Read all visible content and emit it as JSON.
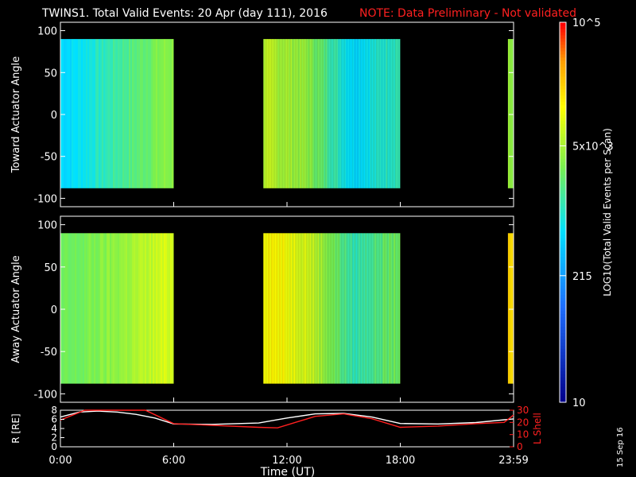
{
  "header": {
    "title": "TWINS1. Total Valid Events: 20 Apr (day 111), 2016",
    "note": "NOTE: Data Preliminary - Not validated"
  },
  "footer": {
    "xlabel": "Time (UT)",
    "stamp": "15 Sep 16"
  },
  "colorbar": {
    "label": "LOG10(Total Valid Events per Scan)",
    "ticks": [
      {
        "value": 10,
        "label": "10"
      },
      {
        "value": 215,
        "label": "215"
      },
      {
        "value": 5000,
        "label": "5x10^3"
      },
      {
        "value": 100000,
        "label": "10^5"
      }
    ],
    "range": [
      10,
      100000
    ],
    "scale": "log"
  },
  "chart_data": [
    {
      "type": "heatmap",
      "panel": "top",
      "ylabel": "Toward Actuator Angle",
      "x_ticks": [
        "0:00",
        "6:00",
        "12:00",
        "18:00",
        "23:59"
      ],
      "xlim": [
        0,
        24
      ],
      "ylim": [
        -110,
        110
      ],
      "y_ticks": [
        -100,
        -50,
        0,
        50,
        100
      ],
      "angle_range": [
        -88,
        90
      ],
      "data_segments_hours": [
        [
          0.0,
          6.0
        ],
        [
          10.75,
          18.0
        ],
        [
          23.7,
          24.0
        ]
      ],
      "typical_level_events": [
        {
          "hour": 0.5,
          "value": 600
        },
        {
          "hour": 3.0,
          "value": 1500
        },
        {
          "hour": 5.5,
          "value": 3500
        },
        {
          "hour": 11.0,
          "value": 6000
        },
        {
          "hour": 13.0,
          "value": 4000
        },
        {
          "hour": 15.5,
          "value": 600
        },
        {
          "hour": 17.5,
          "value": 1200
        },
        {
          "hour": 23.9,
          "value": 4000
        }
      ]
    },
    {
      "type": "heatmap",
      "panel": "middle",
      "ylabel": "Away Actuator Angle",
      "x_ticks": [
        "0:00",
        "6:00",
        "12:00",
        "18:00",
        "23:59"
      ],
      "xlim": [
        0,
        24
      ],
      "ylim": [
        -110,
        110
      ],
      "y_ticks": [
        -100,
        -50,
        0,
        50,
        100
      ],
      "angle_range": [
        -88,
        90
      ],
      "data_segments_hours": [
        [
          0.0,
          6.0
        ],
        [
          10.75,
          18.0
        ],
        [
          23.7,
          24.0
        ]
      ],
      "typical_level_events": [
        {
          "hour": 0.5,
          "value": 2500
        },
        {
          "hour": 3.0,
          "value": 4000
        },
        {
          "hour": 5.5,
          "value": 8000
        },
        {
          "hour": 11.0,
          "value": 15000
        },
        {
          "hour": 13.0,
          "value": 9000
        },
        {
          "hour": 15.5,
          "value": 1200
        },
        {
          "hour": 17.5,
          "value": 2500
        },
        {
          "hour": 23.9,
          "value": 20000
        }
      ]
    },
    {
      "type": "line",
      "panel": "bottom",
      "ylabel_left": "R [RE]",
      "ylabel_right": "L Shell",
      "x_ticks": [
        "0:00",
        "6:00",
        "12:00",
        "18:00",
        "23:59"
      ],
      "xlim": [
        0,
        24
      ],
      "ylim_left": [
        0,
        8
      ],
      "y_ticks_left": [
        0,
        2,
        4,
        6,
        8
      ],
      "ylim_right": [
        0,
        30
      ],
      "y_ticks_right": [
        0,
        10,
        20,
        30
      ],
      "series": [
        {
          "name": "R [RE]",
          "axis": "left",
          "color": "#ffffff",
          "x": [
            0,
            1,
            2,
            3,
            4,
            5,
            6,
            8,
            10.5,
            12,
            13.5,
            15,
            16.5,
            18,
            20,
            22,
            24
          ],
          "y": [
            6.5,
            7.6,
            7.8,
            7.6,
            7.1,
            6.3,
            5.0,
            4.9,
            5.2,
            6.3,
            7.2,
            7.3,
            6.5,
            5.1,
            5.0,
            5.3,
            6.1
          ]
        },
        {
          "name": "L Shell",
          "axis": "right",
          "color": "#ff2020",
          "x": [
            0,
            1.3,
            4.5,
            6,
            10.5,
            11.5,
            13.5,
            15,
            16.5,
            18,
            20,
            22,
            23.5,
            24
          ],
          "y": [
            22,
            30,
            30,
            19,
            16,
            15.5,
            25,
            27,
            23,
            16,
            17,
            19,
            20,
            26
          ]
        }
      ]
    }
  ]
}
